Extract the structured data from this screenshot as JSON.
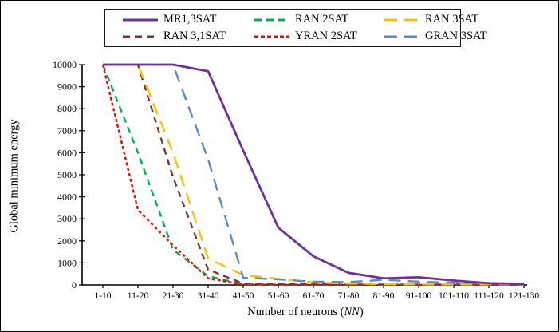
{
  "figure": {
    "y_axis_title": "Global minimum energy",
    "x_axis_title_prefix": "Number of neurons (",
    "x_axis_title_italic": "NN",
    "x_axis_title_suffix": ")"
  },
  "chart_data": {
    "type": "line",
    "title": "",
    "xlabel": "Number of neurons (NN)",
    "ylabel": "Global minimum energy",
    "ylim": [
      0,
      10000
    ],
    "y_tick_step": 1000,
    "y_ticks": [
      0,
      1000,
      2000,
      3000,
      4000,
      5000,
      6000,
      7000,
      8000,
      9000,
      10000
    ],
    "grid": false,
    "legend_position": "top-center",
    "axis_color": "#000000",
    "categories": [
      "1-10",
      "11-20",
      "21-30",
      "31-40",
      "41-50",
      "51-60",
      "61-70",
      "71-80",
      "81-90",
      "91-100",
      "101-110",
      "111-120",
      "121-130"
    ],
    "series": [
      {
        "name": "MR1,3SAT",
        "color": "#7030A0",
        "dash": "solid",
        "values": [
          10000,
          10000,
          10000,
          9700,
          6100,
          2600,
          1300,
          550,
          300,
          350,
          200,
          80,
          50
        ]
      },
      {
        "name": "RAN 2SAT",
        "color": "#00B050",
        "dash": "dash",
        "values": [
          10000,
          6000,
          1600,
          400,
          30,
          20,
          10,
          10,
          10,
          10,
          10,
          10,
          10
        ]
      },
      {
        "name": "RAN 3SAT",
        "color": "#FFC000",
        "dash": "longdash",
        "values": [
          10000,
          10000,
          6000,
          1200,
          450,
          280,
          120,
          60,
          40,
          30,
          30,
          30,
          30
        ]
      },
      {
        "name": "RAN 3,1SAT",
        "color": "#7B3535",
        "dash": "dash",
        "values": [
          10000,
          10000,
          4900,
          700,
          60,
          40,
          30,
          20,
          20,
          20,
          20,
          20,
          20
        ]
      },
      {
        "name": "YRAN 2SAT",
        "color": "#FF0000",
        "dash": "dot",
        "values": [
          10000,
          3400,
          1800,
          300,
          20,
          10,
          10,
          10,
          10,
          10,
          10,
          10,
          10
        ]
      },
      {
        "name": "GRAN 3SAT",
        "color": "#5B8AC5",
        "dash": "longdash",
        "values": [
          10000,
          10000,
          10000,
          5700,
          330,
          250,
          150,
          130,
          230,
          150,
          100,
          80,
          50
        ]
      }
    ]
  }
}
